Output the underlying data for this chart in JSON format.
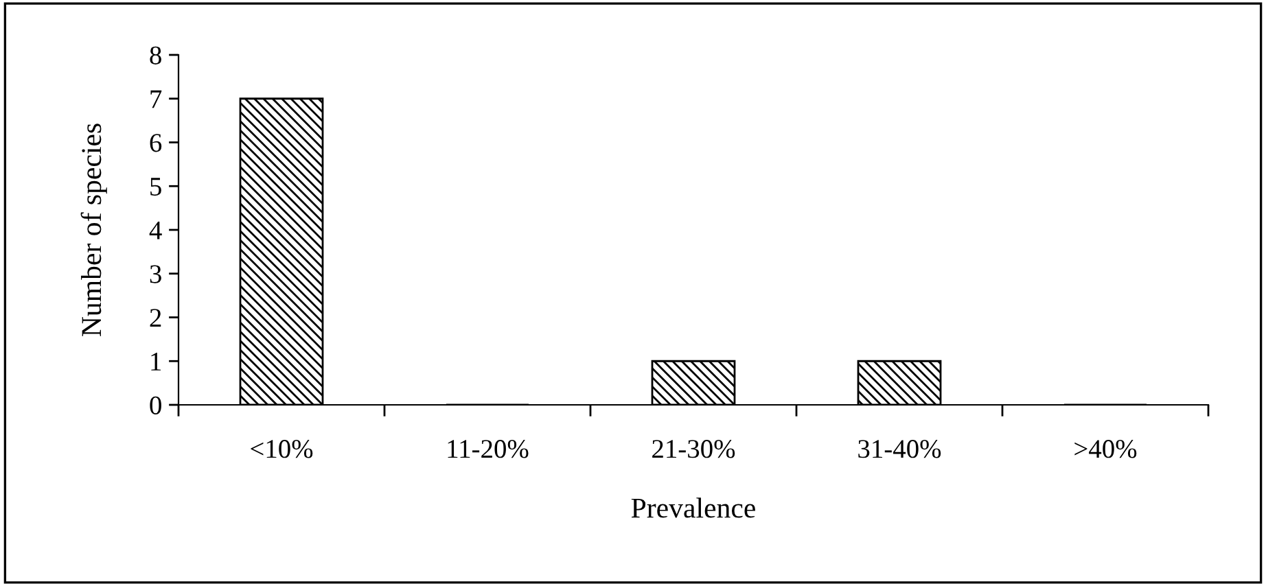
{
  "chart_data": {
    "type": "bar",
    "xlabel": "Prevalence",
    "ylabel": "Number of species",
    "categories": [
      "<10%",
      "11-20%",
      "21-30%",
      "31-40%",
      ">40%"
    ],
    "values": [
      7,
      0,
      1,
      1,
      0
    ],
    "color": "#000000",
    "ylim": [
      0,
      8
    ],
    "yticks": [
      0,
      1,
      2,
      3,
      4,
      5,
      6,
      7,
      8
    ],
    "grid": false
  }
}
